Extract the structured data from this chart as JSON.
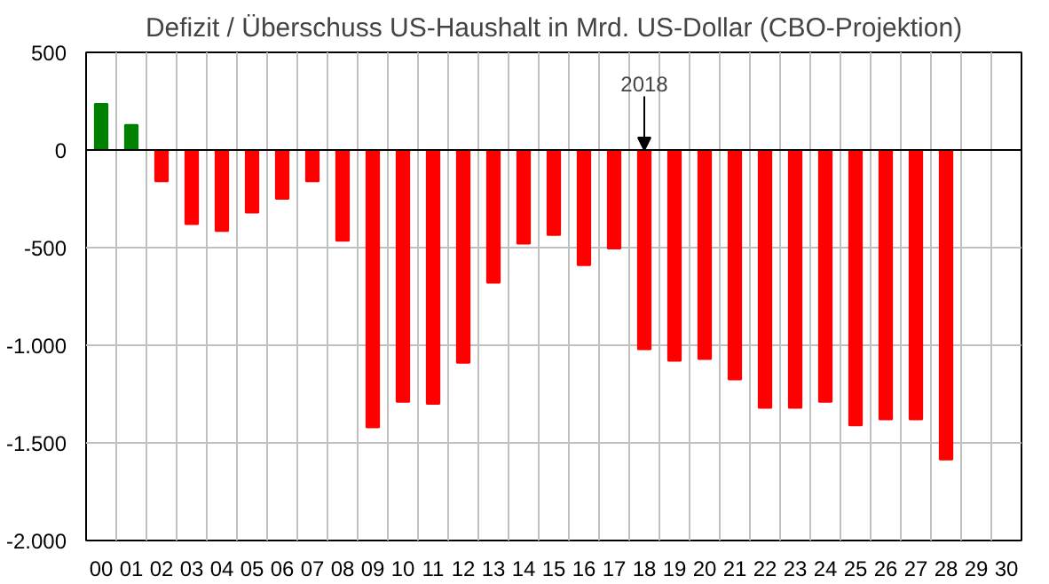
{
  "chart_data": {
    "type": "bar",
    "title": "Defizit / Überschuss US-Haushalt in Mrd. US-Dollar (CBO-Projektion)",
    "categories": [
      "00",
      "01",
      "02",
      "03",
      "04",
      "05",
      "06",
      "07",
      "08",
      "09",
      "10",
      "11",
      "12",
      "13",
      "14",
      "15",
      "16",
      "17",
      "18",
      "19",
      "20",
      "21",
      "22",
      "23",
      "24",
      "25",
      "26",
      "27",
      "28",
      "29",
      "30"
    ],
    "values": [
      236,
      128,
      -160,
      -380,
      -415,
      -320,
      -250,
      -160,
      -465,
      -1420,
      -1290,
      -1300,
      -1090,
      -680,
      -480,
      -435,
      -590,
      -505,
      -1020,
      -1080,
      -1070,
      -1175,
      -1320,
      -1320,
      -1290,
      -1410,
      -1380,
      -1380,
      -1585,
      null,
      null
    ],
    "colors": [
      "#008000",
      "#008000",
      "#ff0000",
      "#ff0000",
      "#ff0000",
      "#ff0000",
      "#ff0000",
      "#ff0000",
      "#ff0000",
      "#ff0000",
      "#ff0000",
      "#ff0000",
      "#ff0000",
      "#ff0000",
      "#ff0000",
      "#ff0000",
      "#ff0000",
      "#ff0000",
      "#ff0000",
      "#ff0000",
      "#ff0000",
      "#ff0000",
      "#ff0000",
      "#ff0000",
      "#ff0000",
      "#ff0000",
      "#ff0000",
      "#ff0000",
      "#ff0000",
      "#ff0000",
      "#ff0000"
    ],
    "ylim": [
      -2000,
      500
    ],
    "yticks": [
      500,
      0,
      {
        "value": -500,
        "label": "-500"
      },
      {
        "value": -1000,
        "label": "-1.000"
      },
      {
        "value": -1500,
        "label": "-1.500"
      },
      {
        "value": -2000,
        "label": "-2.000"
      }
    ],
    "grid": true,
    "annotations": [
      {
        "text": "2018",
        "x": "18",
        "y": 0
      }
    ]
  }
}
